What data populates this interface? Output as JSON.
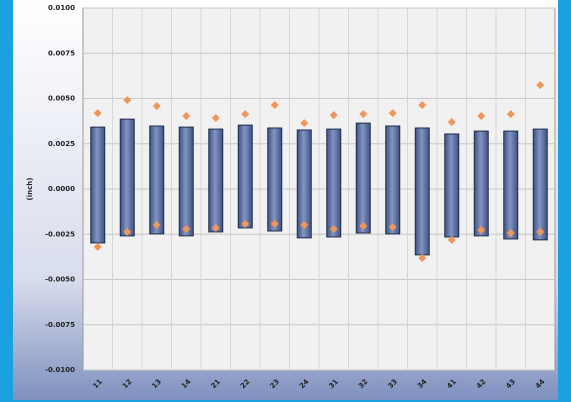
{
  "chart_data": {
    "type": "range-bar",
    "y_label": "(inch)",
    "categories": [
      "11",
      "12",
      "13",
      "14",
      "21",
      "22",
      "23",
      "24",
      "31",
      "32",
      "33",
      "34",
      "41",
      "42",
      "43",
      "44"
    ],
    "bars": {
      "color": "#5b6f9f",
      "high": [
        0.00342,
        0.00386,
        0.00348,
        0.00342,
        0.00331,
        0.00353,
        0.00337,
        0.00326,
        0.00331,
        0.00364,
        0.00348,
        0.00337,
        0.00304,
        0.0032,
        0.0032,
        0.00331
      ],
      "low": [
        -0.00298,
        -0.00259,
        -0.00248,
        -0.00259,
        -0.00237,
        -0.00215,
        -0.00232,
        -0.0027,
        -0.00265,
        -0.00243,
        -0.00248,
        -0.00364,
        -0.00265,
        -0.00259,
        -0.00276,
        -0.00281
      ]
    },
    "markers": {
      "color": "#f0965a",
      "high": [
        0.00419,
        0.00491,
        0.00458,
        0.00403,
        0.00392,
        0.00414,
        0.00464,
        0.00364,
        0.00408,
        0.00414,
        0.00419,
        0.00464,
        0.0037,
        0.00403,
        0.00414,
        0.00574
      ],
      "low": [
        -0.0032,
        -0.00237,
        -0.00199,
        -0.00221,
        -0.00215,
        -0.00193,
        -0.00193,
        -0.00199,
        -0.00221,
        -0.00204,
        -0.0021,
        -0.00381,
        -0.00281,
        -0.00226,
        -0.00243,
        -0.00237
      ]
    },
    "ylim": [
      -0.01,
      0.01
    ],
    "yticks": [
      {
        "value": -0.01,
        "label": "-0.0100"
      },
      {
        "value": -0.0075,
        "label": "-0.0075"
      },
      {
        "value": -0.005,
        "label": "-0.0050"
      },
      {
        "value": -0.0025,
        "label": "-0.0025"
      },
      {
        "value": 0,
        "label": "0.0000"
      },
      {
        "value": 0.0025,
        "label": "0.0025"
      },
      {
        "value": 0.005,
        "label": "0.0050"
      },
      {
        "value": 0.0075,
        "label": "0.0075"
      },
      {
        "value": 0.01,
        "label": "0.0100"
      }
    ],
    "grid": true
  }
}
